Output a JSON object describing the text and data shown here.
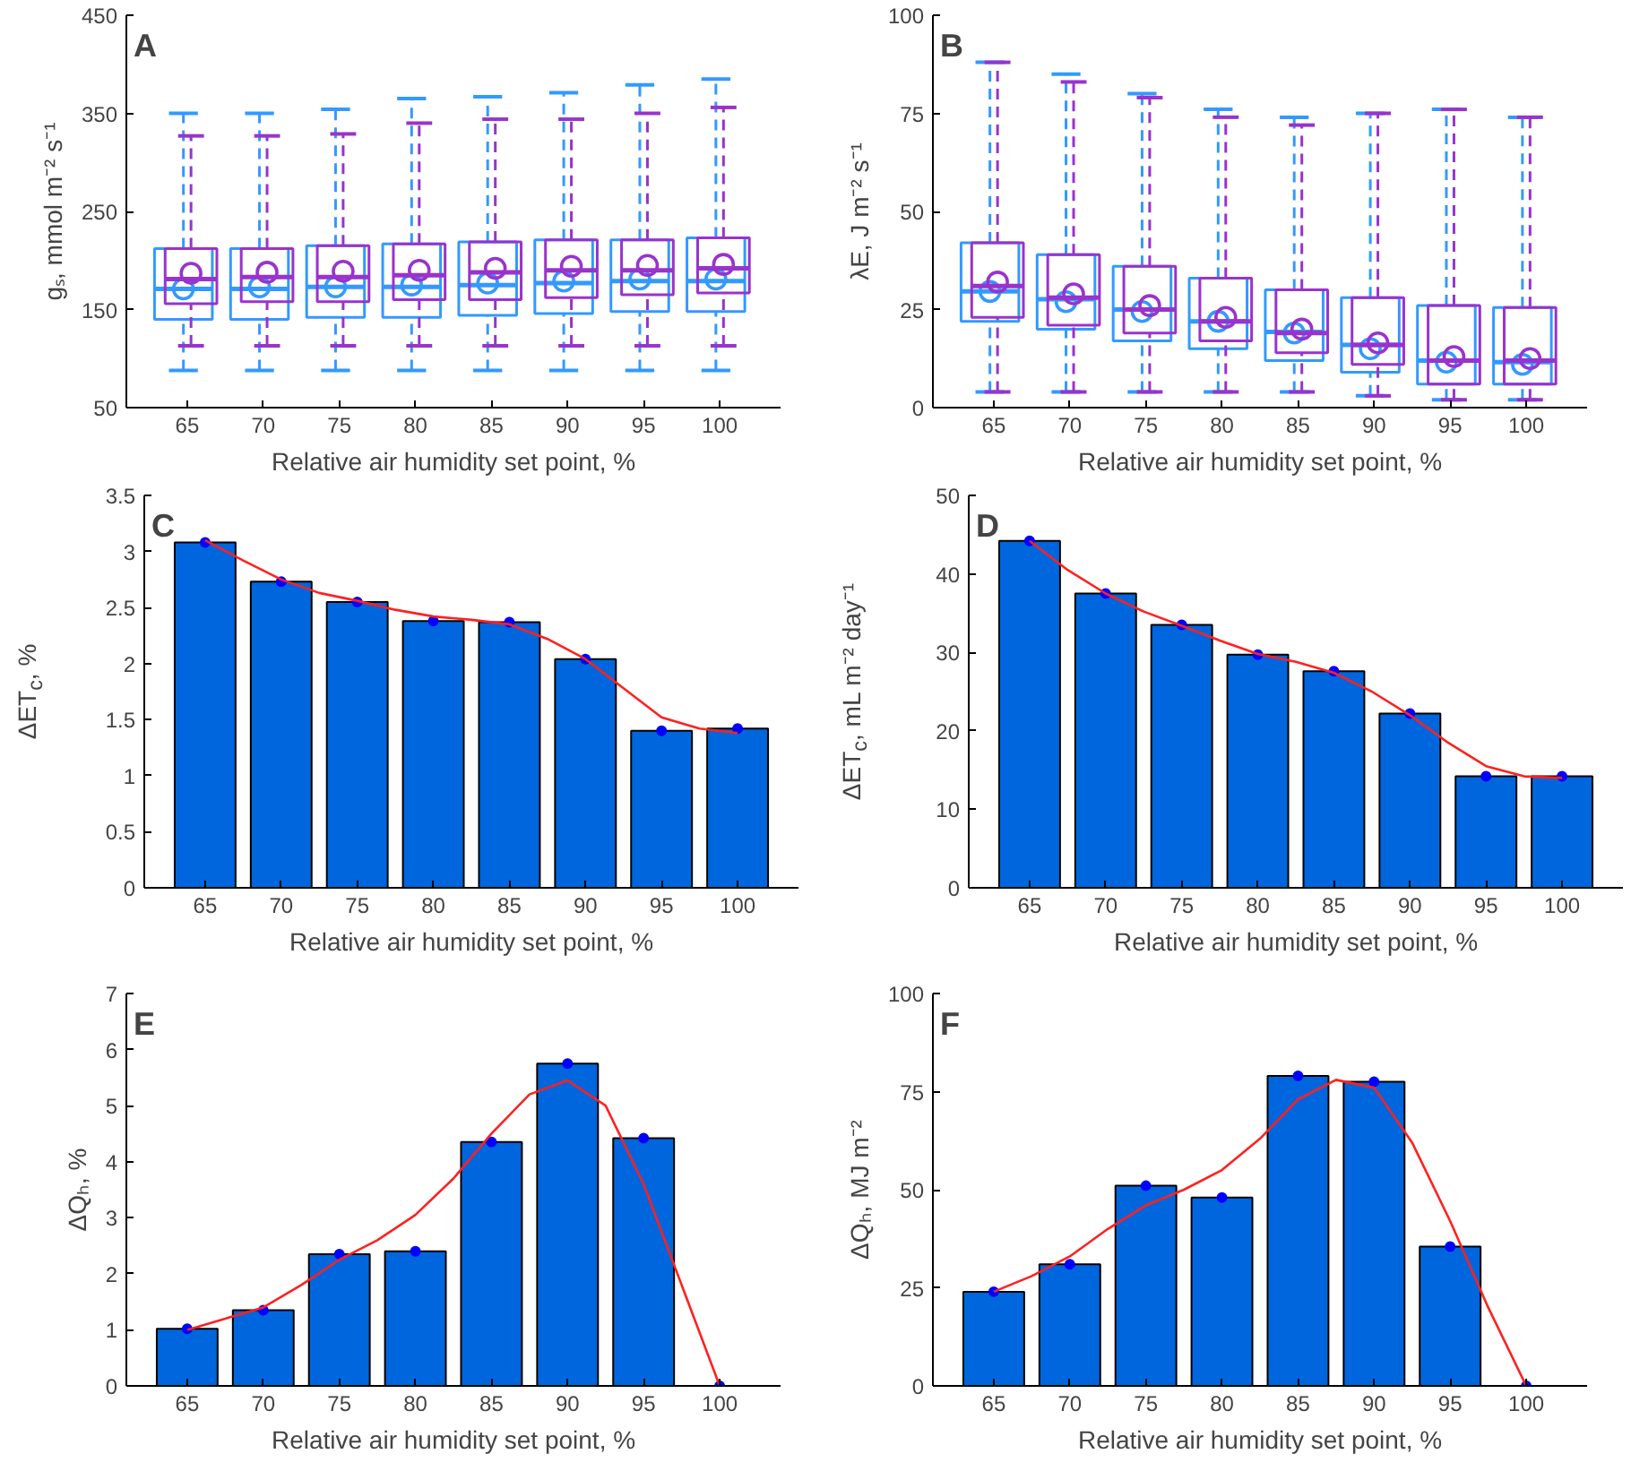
{
  "chart_data": [
    {
      "type": "box",
      "title": "A",
      "xlabel": "Relative air humidity set point, %",
      "ylabel": "gₛ, mmol m⁻² s⁻¹",
      "x": [
        65,
        70,
        75,
        80,
        85,
        90,
        95,
        100
      ],
      "xlim": [
        61,
        104
      ],
      "xticks": [
        65,
        70,
        75,
        80,
        85,
        90,
        95,
        100
      ],
      "ylim": [
        50,
        450
      ],
      "yticks": [
        50,
        150,
        250,
        350,
        450
      ],
      "grid": false,
      "series": [
        {
          "color": "#3399ff",
          "boxes": [
            {
              "low": 88,
              "q1": 140,
              "median": 171,
              "q3": 212,
              "high": 350,
              "mean": 171
            },
            {
              "low": 88,
              "q1": 140,
              "median": 171,
              "q3": 212,
              "high": 350,
              "mean": 173
            },
            {
              "low": 88,
              "q1": 142,
              "median": 173,
              "q3": 215,
              "high": 354,
              "mean": 173
            },
            {
              "low": 88,
              "q1": 142,
              "median": 173,
              "q3": 217,
              "high": 365,
              "mean": 175
            },
            {
              "low": 88,
              "q1": 144,
              "median": 175,
              "q3": 219,
              "high": 367,
              "mean": 177
            },
            {
              "low": 88,
              "q1": 146,
              "median": 177,
              "q3": 221,
              "high": 371,
              "mean": 179
            },
            {
              "low": 88,
              "q1": 148,
              "median": 179,
              "q3": 221,
              "high": 379,
              "mean": 181
            },
            {
              "low": 88,
              "q1": 148,
              "median": 179,
              "q3": 223,
              "high": 385,
              "mean": 181
            }
          ]
        },
        {
          "color": "#9933cc",
          "boxes": [
            {
              "low": 113,
              "q1": 156,
              "median": 181,
              "q3": 212,
              "high": 327,
              "mean": 187
            },
            {
              "low": 113,
              "q1": 158,
              "median": 183,
              "q3": 212,
              "high": 327,
              "mean": 188
            },
            {
              "low": 113,
              "q1": 158,
              "median": 183,
              "q3": 215,
              "high": 329,
              "mean": 189
            },
            {
              "low": 113,
              "q1": 160,
              "median": 185,
              "q3": 217,
              "high": 340,
              "mean": 190
            },
            {
              "low": 113,
              "q1": 160,
              "median": 188,
              "q3": 219,
              "high": 344,
              "mean": 192
            },
            {
              "low": 113,
              "q1": 162,
              "median": 190,
              "q3": 221,
              "high": 344,
              "mean": 194
            },
            {
              "low": 113,
              "q1": 165,
              "median": 190,
              "q3": 221,
              "high": 350,
              "mean": 195
            },
            {
              "low": 113,
              "q1": 167,
              "median": 192,
              "q3": 223,
              "high": 356,
              "mean": 196
            }
          ]
        }
      ]
    },
    {
      "type": "box",
      "title": "B",
      "xlabel": "Relative air humidity set point, %",
      "ylabel": "λE, J m⁻² s⁻¹",
      "x": [
        65,
        70,
        75,
        80,
        85,
        90,
        95,
        100
      ],
      "xlim": [
        61,
        104
      ],
      "xticks": [
        65,
        70,
        75,
        80,
        85,
        90,
        95,
        100
      ],
      "ylim": [
        0,
        100
      ],
      "yticks": [
        0,
        25,
        50,
        75,
        100
      ],
      "grid": false,
      "series": [
        {
          "color": "#3399ff",
          "boxes": [
            {
              "low": 4,
              "q1": 22,
              "median": 29.6,
              "q3": 42,
              "high": 88,
              "mean": 29.6
            },
            {
              "low": 4,
              "q1": 20,
              "median": 27.6,
              "q3": 39,
              "high": 85,
              "mean": 27
            },
            {
              "low": 4,
              "q1": 17,
              "median": 25,
              "q3": 36,
              "high": 80,
              "mean": 24.5
            },
            {
              "low": 4,
              "q1": 15,
              "median": 22,
              "q3": 33,
              "high": 76,
              "mean": 22
            },
            {
              "low": 4,
              "q1": 12,
              "median": 19.3,
              "q3": 30,
              "high": 74,
              "mean": 19
            },
            {
              "low": 3,
              "q1": 9,
              "median": 16,
              "q3": 28,
              "high": 75,
              "mean": 15
            },
            {
              "low": 2,
              "q1": 6,
              "median": 12,
              "q3": 26,
              "high": 76,
              "mean": 11.6
            },
            {
              "low": 2,
              "q1": 6,
              "median": 11.6,
              "q3": 25.5,
              "high": 74,
              "mean": 11
            }
          ]
        },
        {
          "color": "#9933cc",
          "boxes": [
            {
              "low": 4,
              "q1": 23,
              "median": 31,
              "q3": 42,
              "high": 88,
              "mean": 32
            },
            {
              "low": 4,
              "q1": 21,
              "median": 28,
              "q3": 39,
              "high": 83,
              "mean": 29
            },
            {
              "low": 4,
              "q1": 19,
              "median": 25,
              "q3": 36,
              "high": 79,
              "mean": 26
            },
            {
              "low": 4,
              "q1": 17,
              "median": 22,
              "q3": 33,
              "high": 74,
              "mean": 23
            },
            {
              "low": 4,
              "q1": 14,
              "median": 19,
              "q3": 30,
              "high": 72,
              "mean": 20
            },
            {
              "low": 3,
              "q1": 11,
              "median": 16,
              "q3": 28,
              "high": 75,
              "mean": 16.5
            },
            {
              "low": 2,
              "q1": 6,
              "median": 12,
              "q3": 26,
              "high": 76,
              "mean": 13
            },
            {
              "low": 2,
              "q1": 6,
              "median": 12,
              "q3": 25.5,
              "high": 74,
              "mean": 12.5
            }
          ]
        }
      ]
    },
    {
      "type": "bar",
      "title": "C",
      "xlabel": "Relative air humidity set point, %",
      "ylabel": "ΔET$_{c}$, %",
      "x": [
        65,
        70,
        75,
        80,
        85,
        90,
        95,
        100
      ],
      "xlim": [
        61,
        104
      ],
      "xticks": [
        65,
        70,
        75,
        80,
        85,
        90,
        95,
        100
      ],
      "ylim": [
        0,
        3.5
      ],
      "yticks": [
        0,
        0.5,
        1,
        1.5,
        2,
        2.5,
        3,
        3.5
      ],
      "grid": false,
      "series": [
        {
          "type": "bar",
          "color": "#0066dd",
          "values": [
            3.08,
            2.73,
            2.55,
            2.38,
            2.37,
            2.04,
            1.4,
            1.42
          ]
        },
        {
          "type": "scatter",
          "color": "#0000ff",
          "marker": "circle",
          "values": [
            3.08,
            2.73,
            2.55,
            2.38,
            2.37,
            2.04,
            1.4,
            1.42
          ]
        },
        {
          "type": "line",
          "color": "#ff2020",
          "x": [
            65,
            67.5,
            70,
            72.5,
            75,
            77.5,
            80,
            82.5,
            85,
            87.5,
            90,
            92.5,
            95,
            97.5,
            100
          ],
          "values": [
            3.1,
            2.92,
            2.75,
            2.63,
            2.56,
            2.48,
            2.42,
            2.39,
            2.35,
            2.22,
            2.04,
            1.78,
            1.52,
            1.42,
            1.38
          ]
        }
      ]
    },
    {
      "type": "bar",
      "title": "D",
      "xlabel": "Relative air humidity set point, %",
      "ylabel": "ΔET$_{c}$, mL m⁻² day⁻¹",
      "x": [
        65,
        70,
        75,
        80,
        85,
        90,
        95,
        100
      ],
      "xlim": [
        61,
        104
      ],
      "xticks": [
        65,
        70,
        75,
        80,
        85,
        90,
        95,
        100
      ],
      "ylim": [
        0,
        50
      ],
      "yticks": [
        0,
        10,
        20,
        30,
        40,
        50
      ],
      "grid": false,
      "series": [
        {
          "type": "bar",
          "color": "#0066dd",
          "values": [
            44.2,
            37.5,
            33.5,
            29.7,
            27.6,
            22.2,
            14.2,
            14.2
          ]
        },
        {
          "type": "scatter",
          "color": "#0000ff",
          "marker": "circle",
          "values": [
            44.2,
            37.5,
            33.5,
            29.7,
            27.6,
            22.2,
            14.2,
            14.2
          ]
        },
        {
          "type": "line",
          "color": "#ff2020",
          "x": [
            65,
            67.5,
            70,
            72.5,
            75,
            77.5,
            80,
            82.5,
            85,
            87.5,
            90,
            92.5,
            95,
            97.5,
            100
          ],
          "values": [
            44.2,
            40.5,
            37.5,
            35.2,
            33.4,
            31.5,
            29.8,
            28.8,
            27.4,
            25,
            22,
            18.5,
            15.5,
            14.2,
            14
          ]
        }
      ]
    },
    {
      "type": "bar",
      "title": "E",
      "xlabel": "Relative air humidity set point, %",
      "ylabel": "ΔQₕ, %",
      "x": [
        65,
        70,
        75,
        80,
        85,
        90,
        95,
        100
      ],
      "xlim": [
        61,
        104
      ],
      "xticks": [
        65,
        70,
        75,
        80,
        85,
        90,
        95,
        100
      ],
      "ylim": [
        0,
        7
      ],
      "yticks": [
        0,
        1,
        2,
        3,
        4,
        5,
        6,
        7
      ],
      "grid": false,
      "series": [
        {
          "type": "bar",
          "color": "#0066dd",
          "values": [
            1.02,
            1.35,
            2.35,
            2.4,
            4.35,
            5.75,
            4.42,
            0
          ]
        },
        {
          "type": "scatter",
          "color": "#0000ff",
          "marker": "circle",
          "values": [
            1.02,
            1.35,
            2.35,
            2.4,
            4.35,
            5.75,
            4.42,
            0
          ]
        },
        {
          "type": "line",
          "color": "#ff2020",
          "x": [
            65,
            67.5,
            70,
            72.5,
            75,
            77.5,
            80,
            82.5,
            85,
            87.5,
            90,
            92.5,
            95,
            97.5,
            100
          ],
          "values": [
            1.0,
            1.2,
            1.4,
            1.8,
            2.25,
            2.6,
            3.05,
            3.7,
            4.5,
            5.2,
            5.45,
            5.0,
            3.6,
            1.8,
            0
          ]
        }
      ]
    },
    {
      "type": "bar",
      "title": "F",
      "xlabel": "Relative air humidity set point, %",
      "ylabel": "ΔQₕ, MJ m⁻²",
      "x": [
        65,
        70,
        75,
        80,
        85,
        90,
        95,
        100
      ],
      "xlim": [
        61,
        104
      ],
      "xticks": [
        65,
        70,
        75,
        80,
        85,
        90,
        95,
        100
      ],
      "ylim": [
        0,
        100
      ],
      "yticks": [
        0,
        25,
        50,
        75,
        100
      ],
      "grid": false,
      "series": [
        {
          "type": "bar",
          "color": "#0066dd",
          "values": [
            24,
            31,
            51,
            48,
            79,
            77.5,
            35.5,
            0
          ]
        },
        {
          "type": "scatter",
          "color": "#0000ff",
          "marker": "circle",
          "values": [
            24,
            31,
            51,
            48,
            79,
            77.5,
            35.5,
            0
          ]
        },
        {
          "type": "line",
          "color": "#ff2020",
          "x": [
            65,
            67.5,
            70,
            72.5,
            75,
            77.5,
            80,
            82.5,
            85,
            87.5,
            90,
            92.5,
            95,
            97.5,
            100
          ],
          "values": [
            24,
            28,
            33,
            40,
            46,
            50,
            55,
            63,
            73,
            78,
            76,
            62,
            42,
            20,
            0
          ]
        }
      ]
    }
  ]
}
